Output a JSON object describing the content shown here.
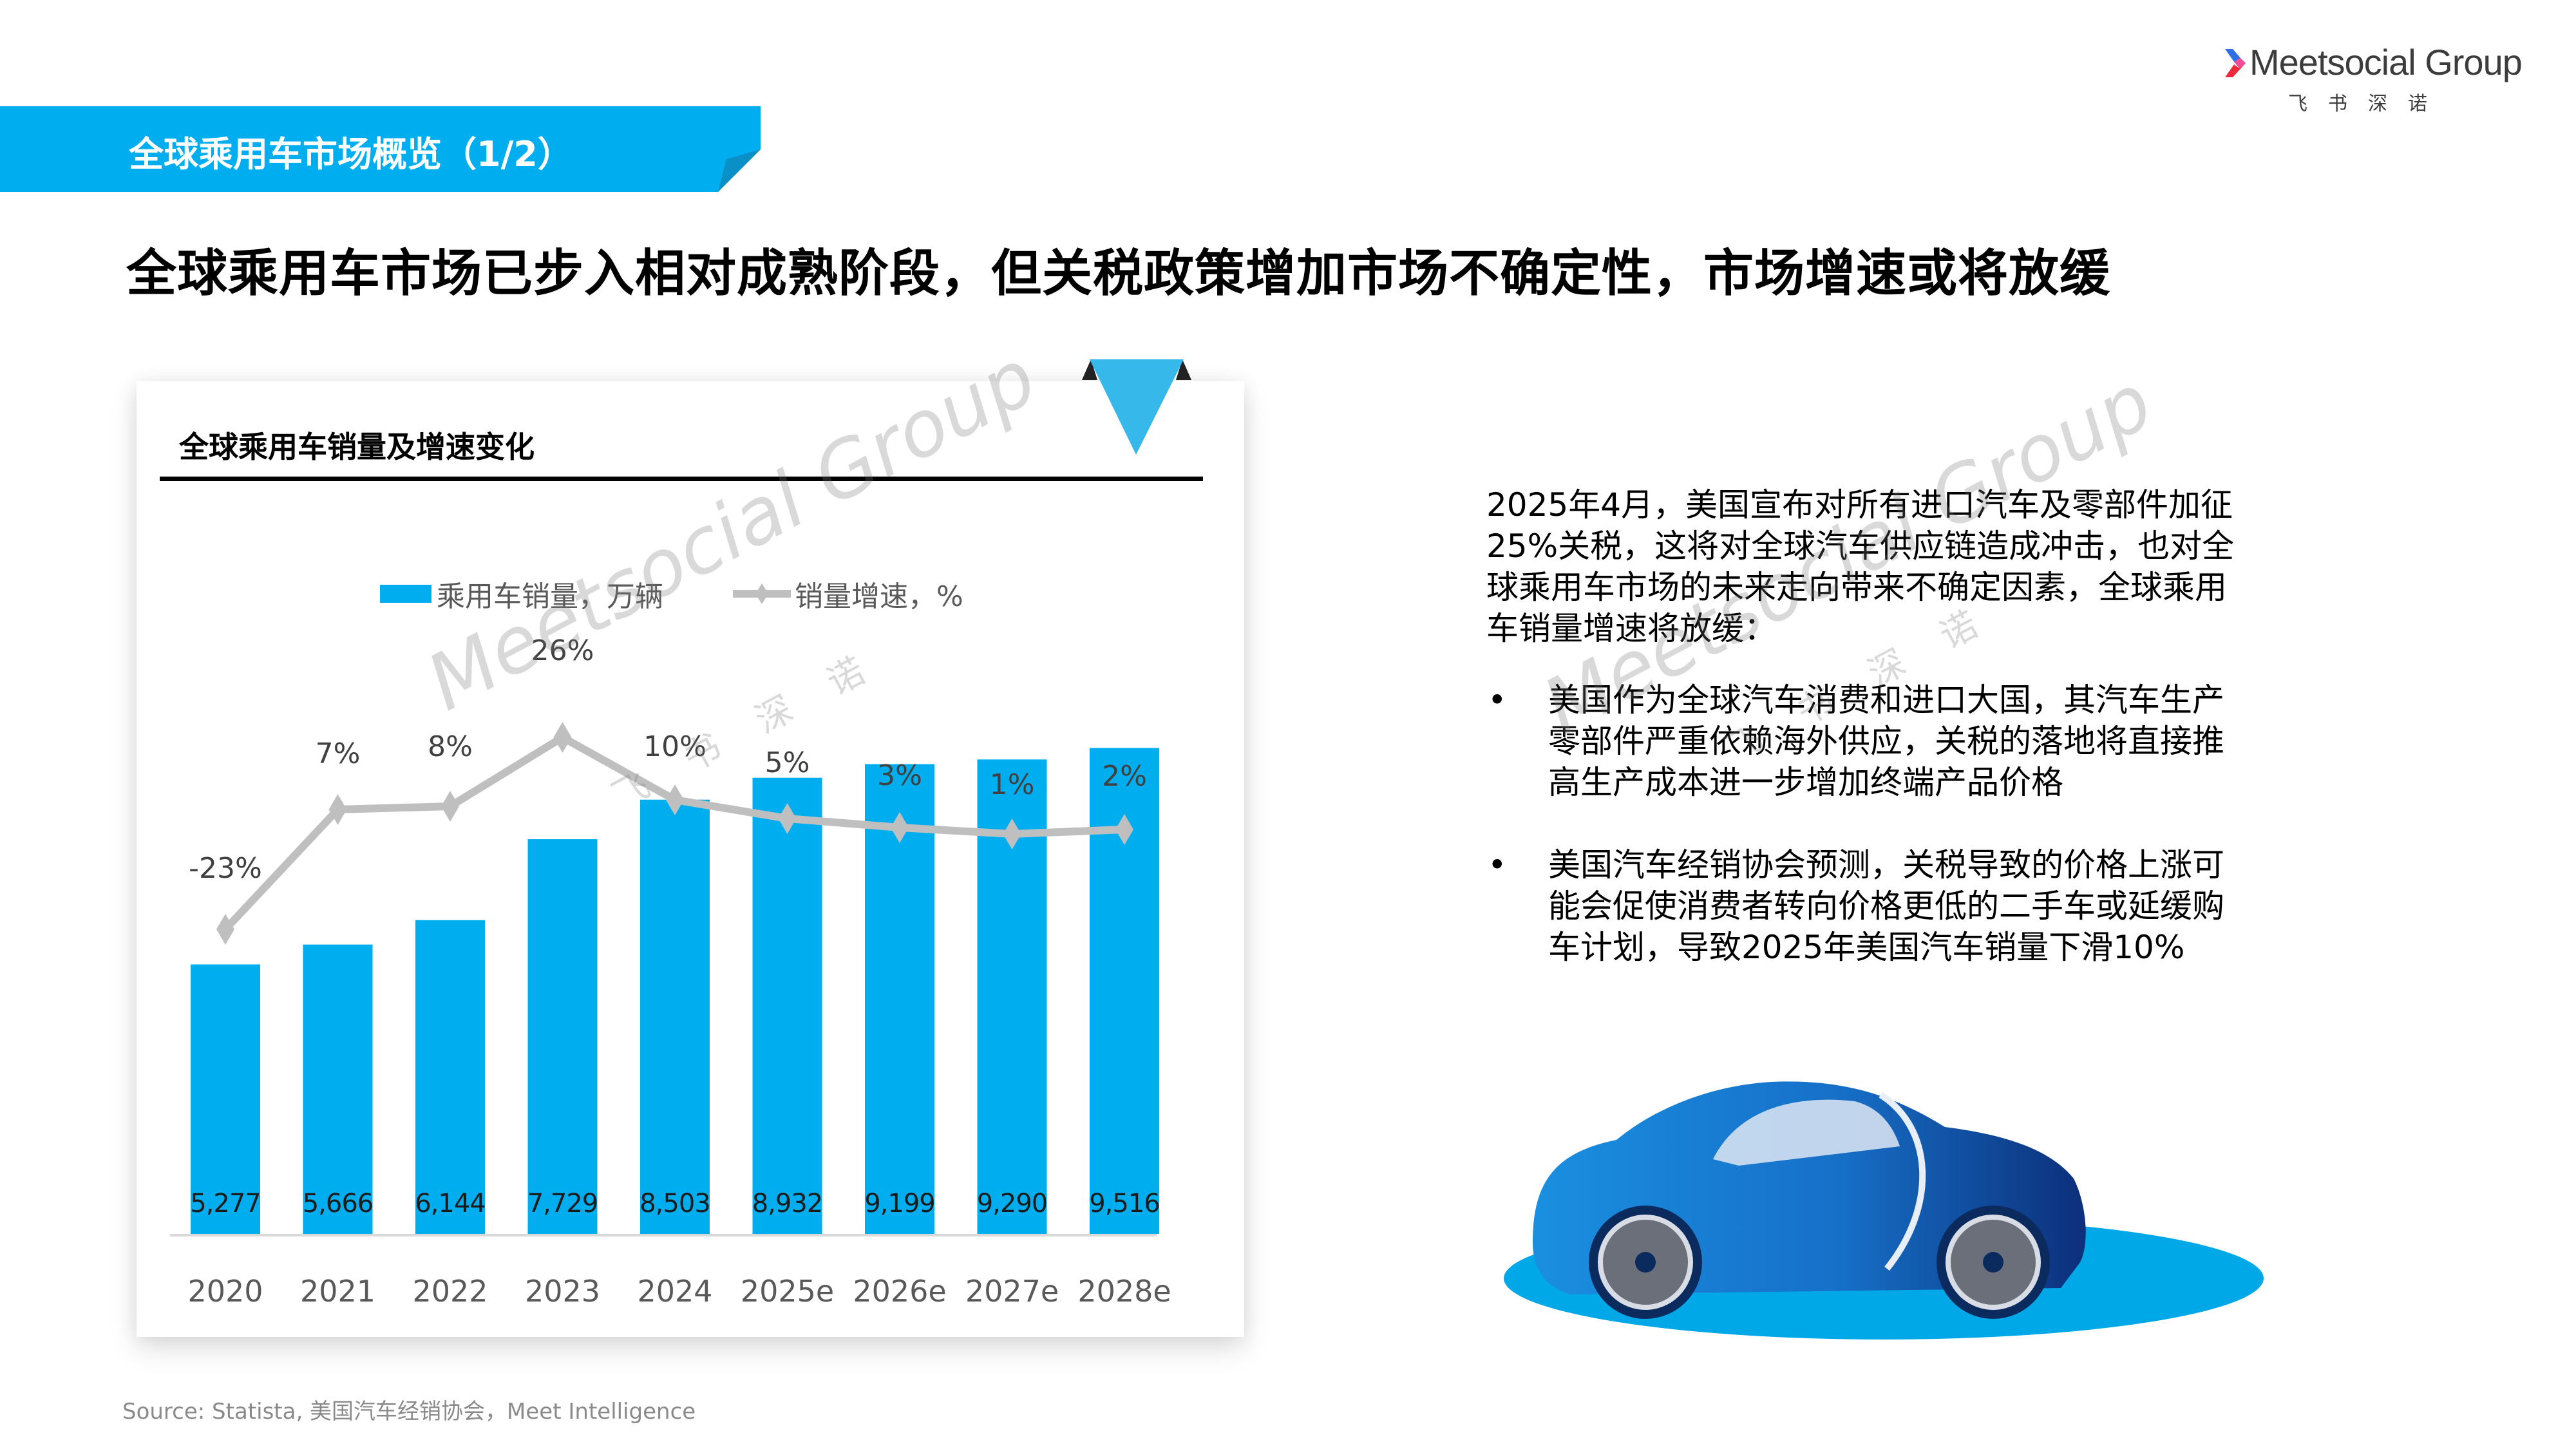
{
  "logo": {
    "brand": "Meetsocial Group",
    "brand_sub": "飞书深诺",
    "mark_colors": [
      "#2f6fe4",
      "#f04c9a",
      "#ee2a3a"
    ]
  },
  "banner": {
    "title": "全球乘用车市场概览（1/2）",
    "color": "#00aeef",
    "fold_color": "#0a8fc6"
  },
  "headline": "全球乘用车市场已步入相对成熟阶段，但关税政策增加市场不确定性，市场增速或将放缓",
  "card": {
    "title": "全球乘用车销量及增速变化"
  },
  "legend": {
    "bar_label": "乘用车销量，万辆",
    "line_label": "销量增速，%"
  },
  "chart_data": {
    "type": "bar+line",
    "title": "全球乘用车销量及增速变化",
    "categories": [
      "2020",
      "2021",
      "2022",
      "2023",
      "2024",
      "2025e",
      "2026e",
      "2027e",
      "2028e"
    ],
    "series": [
      {
        "name": "乘用车销量，万辆",
        "type": "bar",
        "color": "#00aeef",
        "values": [
          5277,
          5666,
          6144,
          7729,
          8503,
          8932,
          9199,
          9290,
          9516
        ],
        "labels": [
          "5,277",
          "5,666",
          "6,144",
          "7,729",
          "8,503",
          "8,932",
          "9,199",
          "9,290",
          "9,516"
        ]
      },
      {
        "name": "销量增速，%",
        "type": "line",
        "color": "#bfbfbf",
        "marker": "diamond",
        "values": [
          -23,
          7,
          8,
          26,
          10,
          5,
          3,
          1,
          2
        ],
        "labels": [
          "-23%",
          "7%",
          "8%",
          "26%",
          "10%",
          "5%",
          "3%",
          "1%",
          "2%"
        ]
      }
    ],
    "xlabel": "",
    "ylabel": "",
    "grid": false,
    "legend_position": "top"
  },
  "text": {
    "paragraph": "2025年4月，美国宣布对所有进口汽车及零部件加征25%关税，这将对全球汽车供应链造成冲击，也对全球乘用车市场的未来走向带来不确定因素，全球乘用车销量增速将放缓：",
    "bullets": [
      "美国作为全球汽车消费和进口大国，其汽车生产零部件严重依赖海外供应，关税的落地将直接推高生产成本进一步增加终端产品价格",
      "美国汽车经销协会预测，关税导致的价格上涨可能会促使消费者转向价格更低的二手车或延缓购车计划，导致2025年美国汽车销量下滑10%"
    ],
    "bullet_symbol": "•"
  },
  "watermark": {
    "text": "Meetsocial Group",
    "sub": "飞书深诺"
  },
  "source": "Source: Statista, 美国汽车经销协会，Meet Intelligence"
}
